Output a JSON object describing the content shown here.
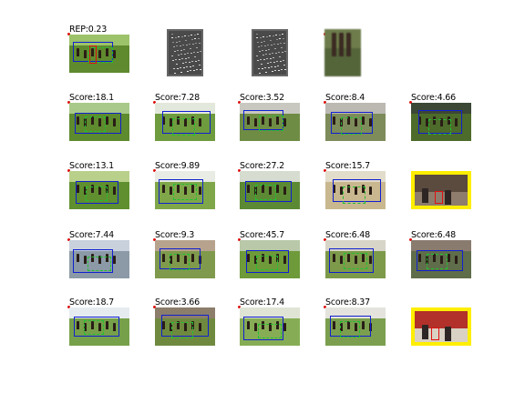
{
  "figure": {
    "rows": [
      {
        "row_name": "rep-row",
        "cells": [
          {
            "caption": "REP:0.23",
            "kind": "photo",
            "scene": "race",
            "palette": [
              "#9cc26a",
              "#5f8a2e"
            ],
            "boxes": [
              "blue",
              "green",
              "red"
            ]
          },
          {
            "caption": "",
            "kind": "tv",
            "scene": "speckle"
          },
          {
            "caption": "",
            "kind": "tv",
            "scene": "speckle"
          },
          {
            "caption": "",
            "kind": "photo",
            "scene": "blurred-horse",
            "palette": [
              "#6d7c4a",
              "#55653a"
            ],
            "boxes": []
          },
          {
            "caption": "",
            "kind": "empty"
          }
        ]
      },
      {
        "row_name": "result-row-1",
        "cells": [
          {
            "caption": "Score:18.1",
            "kind": "photo",
            "scene": "race",
            "palette": [
              "#a9c98a",
              "#5e8b2e"
            ],
            "boxes": [
              "blue",
              "green"
            ]
          },
          {
            "caption": "Score:7.28",
            "kind": "photo",
            "scene": "race",
            "palette": [
              "#e3e8dc",
              "#6e9b3e"
            ],
            "boxes": [
              "blue",
              "green"
            ]
          },
          {
            "caption": "Score:3.52",
            "kind": "photo",
            "scene": "race",
            "palette": [
              "#c8c8c0",
              "#6f8c44"
            ],
            "boxes": [
              "blue",
              "green"
            ]
          },
          {
            "caption": "Score:8.4",
            "kind": "photo",
            "scene": "race",
            "palette": [
              "#bbb9b2",
              "#7d8c5a"
            ],
            "boxes": [
              "blue",
              "green"
            ]
          },
          {
            "caption": "Score:4.66",
            "kind": "photo",
            "scene": "race",
            "palette": [
              "#3c4736",
              "#4d6b2a"
            ],
            "boxes": [
              "blue",
              "green"
            ]
          }
        ]
      },
      {
        "row_name": "result-row-2",
        "cells": [
          {
            "caption": "Score:13.1",
            "kind": "photo",
            "scene": "race",
            "palette": [
              "#b9d08a",
              "#5f8f2f"
            ],
            "boxes": [
              "blue",
              "green"
            ]
          },
          {
            "caption": "Score:9.89",
            "kind": "photo",
            "scene": "race",
            "palette": [
              "#e8ece4",
              "#7fa74a"
            ],
            "boxes": [
              "blue",
              "green"
            ]
          },
          {
            "caption": "Score:27.2",
            "kind": "photo",
            "scene": "race",
            "palette": [
              "#d6dccf",
              "#5c8a34"
            ],
            "boxes": [
              "blue",
              "green"
            ]
          },
          {
            "caption": "Score:15.7",
            "kind": "photo",
            "scene": "race",
            "palette": [
              "#e2dccb",
              "#c9b88f"
            ],
            "boxes": [
              "blue",
              "green"
            ]
          },
          {
            "caption": "",
            "kind": "photo",
            "scene": "indoor",
            "palette": [
              "#5b4a3e",
              "#8e7c6c"
            ],
            "boxes": [
              "red"
            ],
            "frame": "yellow"
          }
        ]
      },
      {
        "row_name": "result-row-3",
        "cells": [
          {
            "caption": "Score:7.44",
            "kind": "photo",
            "scene": "race",
            "palette": [
              "#c9d1dc",
              "#8b9aa6"
            ],
            "boxes": [
              "blue",
              "green"
            ]
          },
          {
            "caption": "Score:9.3",
            "kind": "photo",
            "scene": "race",
            "palette": [
              "#b7a38d",
              "#7f9a4c"
            ],
            "boxes": [
              "blue",
              "green"
            ]
          },
          {
            "caption": "Score:45.7",
            "kind": "photo",
            "scene": "race",
            "palette": [
              "#b8c8a8",
              "#6e9a3a"
            ],
            "boxes": [
              "blue",
              "green"
            ]
          },
          {
            "caption": "Score:6.48",
            "kind": "photo",
            "scene": "race",
            "palette": [
              "#d7d4c8",
              "#7d9a4a"
            ],
            "boxes": [
              "blue",
              "green"
            ]
          },
          {
            "caption": "Score:6.48",
            "kind": "photo",
            "scene": "race",
            "palette": [
              "#8a7b6f",
              "#5f6d4a"
            ],
            "boxes": [
              "blue",
              "green"
            ]
          }
        ]
      },
      {
        "row_name": "result-row-4",
        "cells": [
          {
            "caption": "Score:18.7",
            "kind": "photo",
            "scene": "race",
            "palette": [
              "#e6ebef",
              "#76a04a"
            ],
            "boxes": [
              "blue",
              "green"
            ]
          },
          {
            "caption": "Score:3.66",
            "kind": "photo",
            "scene": "race",
            "palette": [
              "#8c7e6b",
              "#6f8a3f"
            ],
            "boxes": [
              "blue",
              "green"
            ]
          },
          {
            "caption": "Score:17.4",
            "kind": "photo",
            "scene": "race",
            "palette": [
              "#dfe4d5",
              "#86ad55"
            ],
            "boxes": [
              "blue",
              "green"
            ]
          },
          {
            "caption": "Score:8.37",
            "kind": "photo",
            "scene": "race",
            "palette": [
              "#e4e3dd",
              "#7b9f4f"
            ],
            "boxes": [
              "blue",
              "green"
            ]
          },
          {
            "caption": "",
            "kind": "photo",
            "scene": "indoor",
            "palette": [
              "#b2312a",
              "#d9d1c3"
            ],
            "boxes": [
              "red"
            ],
            "frame": "yellow"
          }
        ]
      }
    ]
  }
}
